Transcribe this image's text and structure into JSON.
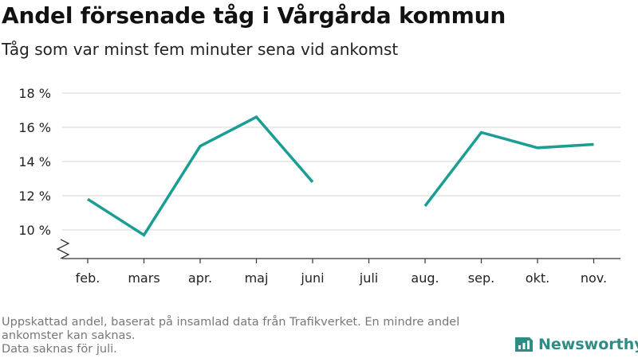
{
  "header": {
    "title": "Andel försenade tåg i Vårgårda kommun",
    "subtitle": "Tåg som var minst fem minuter sena vid ankomst"
  },
  "footer": {
    "note_lines": [
      "Uppskattad andel, baserat på insamlad data från Trafikverket. En mindre andel ankomster kan saknas.",
      "Data saknas för juli."
    ],
    "brand": "Newsworthy"
  },
  "colors": {
    "line": "#1a9e93",
    "brand": "#2d8c84",
    "grid": "#dddddd",
    "axis": "#333333"
  },
  "chart_data": {
    "type": "line",
    "title": "Andel försenade tåg i Vårgårda kommun",
    "subtitle": "Tåg som var minst fem minuter sena vid ankomst",
    "categories": [
      "feb.",
      "mars",
      "apr.",
      "maj",
      "juni",
      "juli",
      "aug.",
      "sep.",
      "okt.",
      "nov."
    ],
    "series": [
      {
        "values": [
          11.8,
          9.7,
          14.9,
          16.6,
          12.8,
          null,
          11.4,
          15.7,
          14.8,
          15.0
        ]
      }
    ],
    "y_ticks": [
      10,
      12,
      14,
      16,
      18
    ],
    "y_tick_labels": [
      "10 %",
      "12 %",
      "14 %",
      "16 %",
      "18 %"
    ],
    "ylim": [
      8.3,
      18
    ],
    "y_axis_break": true,
    "grid": true,
    "xlabel": "",
    "ylabel": ""
  }
}
